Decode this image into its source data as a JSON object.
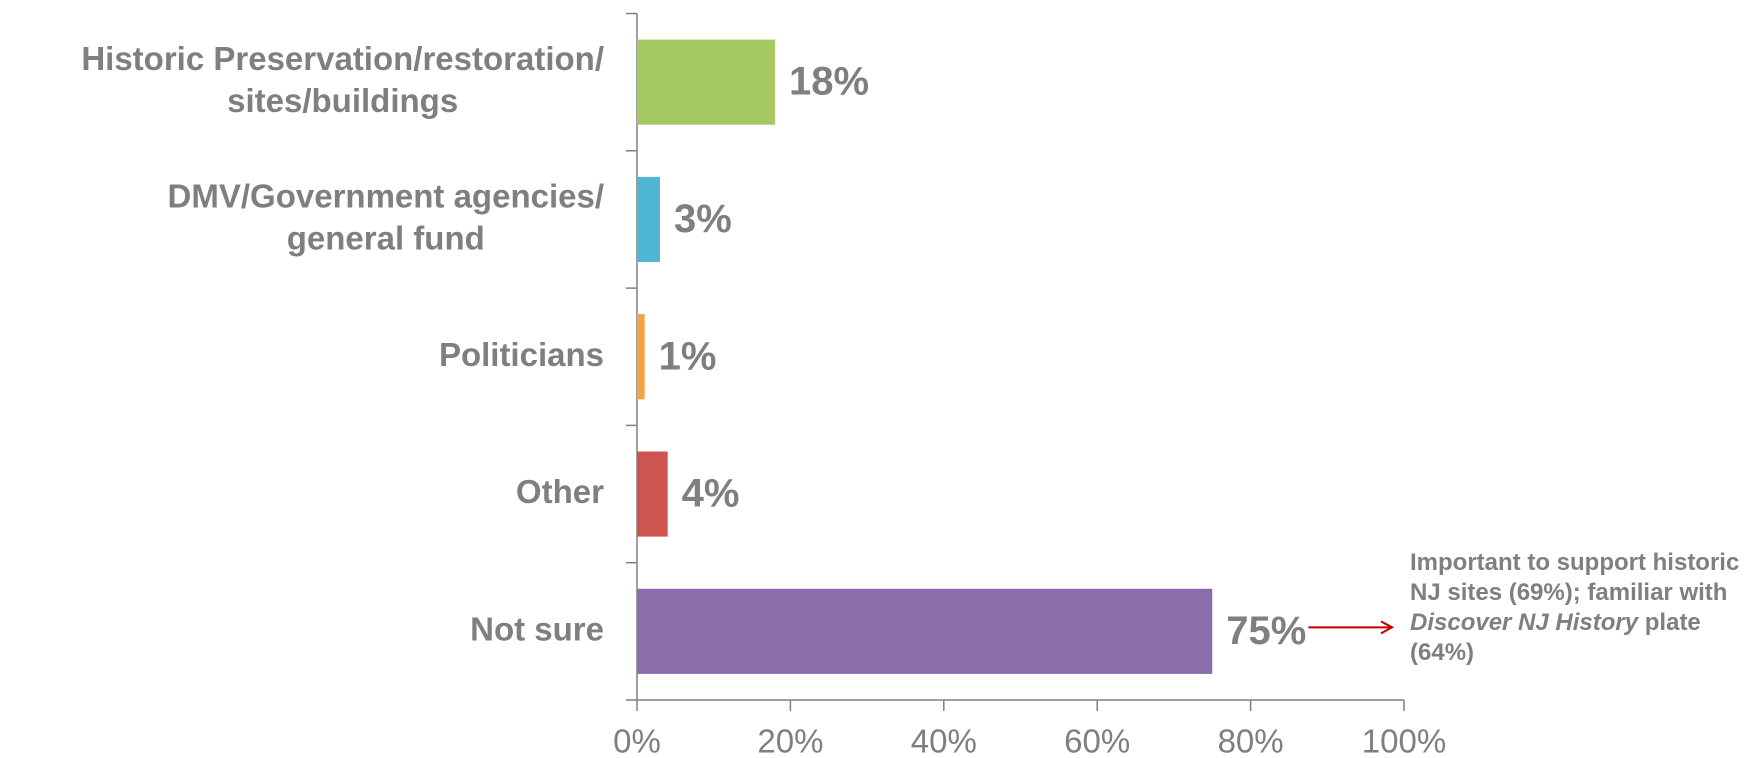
{
  "chart_data": {
    "type": "bar",
    "orientation": "horizontal",
    "categories": [
      "Historic Preservation/restoration/\nsites/buildings",
      "DMV/Government agencies/\ngeneral fund",
      "Politicians",
      "Other",
      "Not sure"
    ],
    "values": [
      18,
      3,
      1,
      4,
      75
    ],
    "value_labels": [
      "18%",
      "3%",
      "1%",
      "4%",
      "75%"
    ],
    "colors": [
      "#a5c862",
      "#4fb6d4",
      "#f5a347",
      "#cd5550",
      "#8a6dab"
    ],
    "xlim": [
      0,
      100
    ],
    "xticks": [
      {
        "value": 0,
        "label": "0%"
      },
      {
        "value": 20,
        "label": "20%"
      },
      {
        "value": 40,
        "label": "40%"
      },
      {
        "value": 60,
        "label": "60%"
      },
      {
        "value": 80,
        "label": "80%"
      },
      {
        "value": 100,
        "label": "100%"
      }
    ],
    "annotation": [
      {
        "text": "Important to support historic NJ sites (69%); familiar with "
      },
      {
        "text": "Discover NJ History",
        "italic": true
      },
      {
        "text": " plate (64%)"
      }
    ]
  }
}
